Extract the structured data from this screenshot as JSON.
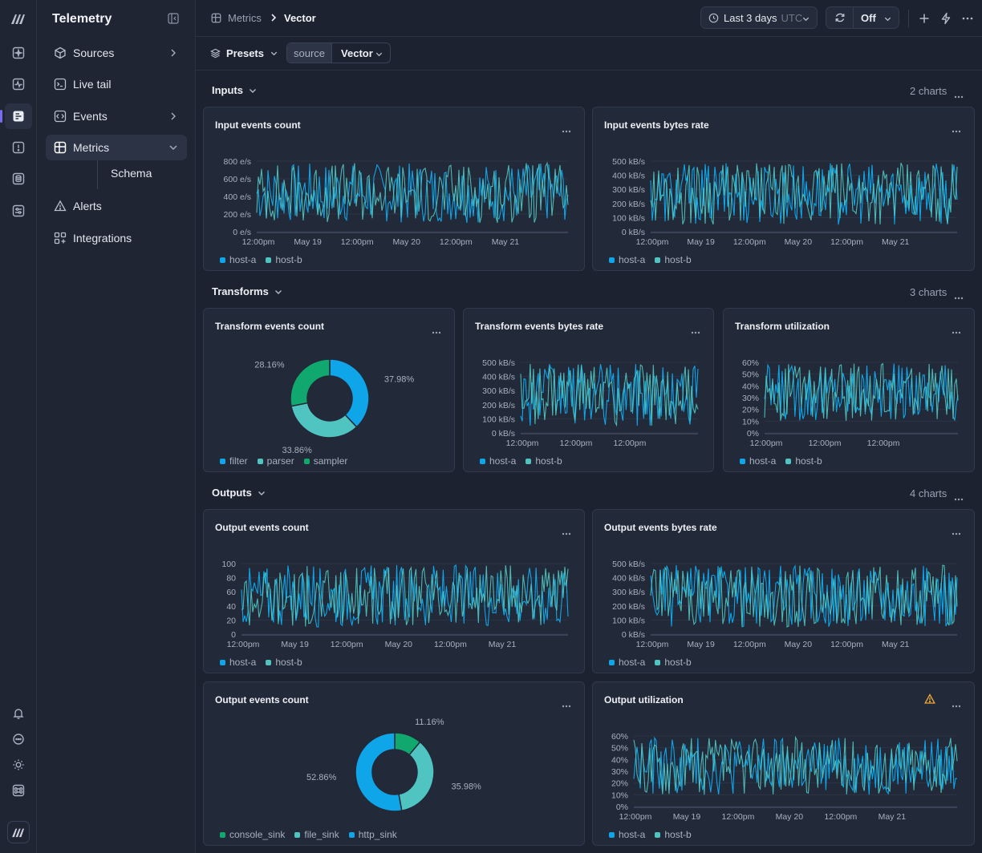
{
  "app": {
    "title": "Telemetry"
  },
  "sidebar": {
    "items": [
      {
        "label": "Sources",
        "icon": "cube-icon",
        "has_chevron": true
      },
      {
        "label": "Live tail",
        "icon": "terminal-icon",
        "has_chevron": false
      },
      {
        "label": "Events",
        "icon": "code-brackets-icon",
        "has_chevron": true
      },
      {
        "label": "Metrics",
        "icon": "grid-chart-icon",
        "has_chevron": true,
        "expanded": true
      },
      {
        "label": "Alerts",
        "icon": "warning-triangle-icon",
        "has_chevron": false
      },
      {
        "label": "Integrations",
        "icon": "apps-plus-icon",
        "has_chevron": false
      }
    ],
    "subitems": [
      {
        "label": "Schema"
      }
    ]
  },
  "breadcrumb": {
    "parent": "Metrics",
    "current": "Vector"
  },
  "toolbar": {
    "time_range": "Last 3 days",
    "timezone": "UTC",
    "refresh": "Off"
  },
  "filters": {
    "presets_label": "Presets",
    "filter_key": "source",
    "filter_value": "Vector"
  },
  "colors": {
    "blue": "#0ea5e9",
    "teal": "#4fc4c1",
    "green": "#10a86e",
    "warning": "#f0a93a",
    "accent": "#7a6cf0"
  },
  "sections": [
    {
      "title": "Inputs",
      "count": "2 charts"
    },
    {
      "title": "Transforms",
      "count": "3 charts"
    },
    {
      "title": "Outputs",
      "count": "4 charts"
    }
  ],
  "chart_data": [
    {
      "id": "input-events-count",
      "type": "line",
      "title": "Input events count",
      "ylim": [
        0,
        800
      ],
      "yticks": [
        "0 e/s",
        "200 e/s",
        "400 e/s",
        "600 e/s",
        "800 e/s"
      ],
      "xticks": [
        "12:00pm",
        "May 19",
        "12:00pm",
        "May 20",
        "12:00pm",
        "May 21"
      ],
      "series": [
        {
          "name": "host-a",
          "color": "#0ea5e9",
          "range": [
            100,
            780
          ]
        },
        {
          "name": "host-b",
          "color": "#4fc4c1",
          "range": [
            100,
            780
          ]
        }
      ]
    },
    {
      "id": "input-events-bytes-rate",
      "type": "line",
      "title": "Input events bytes rate",
      "ylim": [
        0,
        500
      ],
      "yticks": [
        "0 kB/s",
        "100 kB/s",
        "200 kB/s",
        "300 kB/s",
        "400 kB/s",
        "500 kB/s"
      ],
      "xticks": [
        "12:00pm",
        "May 19",
        "12:00pm",
        "May 20",
        "12:00pm",
        "May 21"
      ],
      "series": [
        {
          "name": "host-a",
          "color": "#0ea5e9",
          "range": [
            50,
            490
          ]
        },
        {
          "name": "host-b",
          "color": "#4fc4c1",
          "range": [
            50,
            490
          ]
        }
      ]
    },
    {
      "id": "transform-events-count",
      "type": "pie",
      "title": "Transform events count",
      "slices": [
        {
          "name": "filter",
          "value": 37.98,
          "label": "37.98%",
          "color": "#0ea5e9"
        },
        {
          "name": "parser",
          "value": 33.86,
          "label": "33.86%",
          "color": "#4fc4c1"
        },
        {
          "name": "sampler",
          "value": 28.16,
          "label": "28.16%",
          "color": "#10a86e"
        }
      ]
    },
    {
      "id": "transform-events-bytes-rate",
      "type": "line",
      "title": "Transform events bytes rate",
      "ylim": [
        0,
        500
      ],
      "yticks": [
        "0 kB/s",
        "100 kB/s",
        "200 kB/s",
        "300 kB/s",
        "400 kB/s",
        "500 kB/s"
      ],
      "xticks": [
        "12:00pm",
        "12:00pm",
        "12:00pm"
      ],
      "series": [
        {
          "name": "host-a",
          "color": "#0ea5e9",
          "range": [
            50,
            490
          ]
        },
        {
          "name": "host-b",
          "color": "#4fc4c1",
          "range": [
            50,
            490
          ]
        }
      ]
    },
    {
      "id": "transform-utilization",
      "type": "line",
      "title": "Transform utilization",
      "ylim": [
        0,
        60
      ],
      "yticks": [
        "0%",
        "10%",
        "20%",
        "30%",
        "40%",
        "50%",
        "60%"
      ],
      "xticks": [
        "12:00pm",
        "12:00pm",
        "12:00pm"
      ],
      "series": [
        {
          "name": "host-a",
          "color": "#0ea5e9",
          "range": [
            10,
            59
          ]
        },
        {
          "name": "host-b",
          "color": "#4fc4c1",
          "range": [
            10,
            59
          ]
        }
      ]
    },
    {
      "id": "output-events-count",
      "type": "line",
      "title": "Output events count",
      "ylim": [
        0,
        100
      ],
      "yticks": [
        "0",
        "20",
        "40",
        "60",
        "80",
        "100"
      ],
      "xticks": [
        "12:00pm",
        "May 19",
        "12:00pm",
        "May 20",
        "12:00pm",
        "May 21"
      ],
      "series": [
        {
          "name": "host-a",
          "color": "#0ea5e9",
          "range": [
            10,
            98
          ]
        },
        {
          "name": "host-b",
          "color": "#4fc4c1",
          "range": [
            10,
            98
          ]
        }
      ]
    },
    {
      "id": "output-events-bytes-rate",
      "type": "line",
      "title": "Output events bytes rate",
      "ylim": [
        0,
        500
      ],
      "yticks": [
        "0 kB/s",
        "100 kB/s",
        "200 kB/s",
        "300 kB/s",
        "400 kB/s",
        "500 kB/s"
      ],
      "xticks": [
        "12:00pm",
        "May 19",
        "12:00pm",
        "May 20",
        "12:00pm",
        "May 21"
      ],
      "series": [
        {
          "name": "host-a",
          "color": "#0ea5e9",
          "range": [
            50,
            490
          ]
        },
        {
          "name": "host-b",
          "color": "#4fc4c1",
          "range": [
            50,
            490
          ]
        }
      ]
    },
    {
      "id": "output-events-count-pie",
      "type": "pie",
      "title": "Output events count",
      "slices": [
        {
          "name": "console_sink",
          "value": 11.16,
          "label": "11.16%",
          "color": "#10a86e"
        },
        {
          "name": "file_sink",
          "value": 35.98,
          "label": "35.98%",
          "color": "#4fc4c1"
        },
        {
          "name": "http_sink",
          "value": 52.86,
          "label": "52.86%",
          "color": "#0ea5e9"
        }
      ]
    },
    {
      "id": "output-utilization",
      "type": "line",
      "title": "Output utilization",
      "warning": true,
      "ylim": [
        0,
        60
      ],
      "yticks": [
        "0%",
        "10%",
        "20%",
        "30%",
        "40%",
        "50%",
        "60%"
      ],
      "xticks": [
        "12:00pm",
        "May 19",
        "12:00pm",
        "May 20",
        "12:00pm",
        "May 21"
      ],
      "series": [
        {
          "name": "host-a",
          "color": "#0ea5e9",
          "range": [
            10,
            59
          ]
        },
        {
          "name": "host-b",
          "color": "#4fc4c1",
          "range": [
            10,
            59
          ]
        }
      ]
    }
  ]
}
